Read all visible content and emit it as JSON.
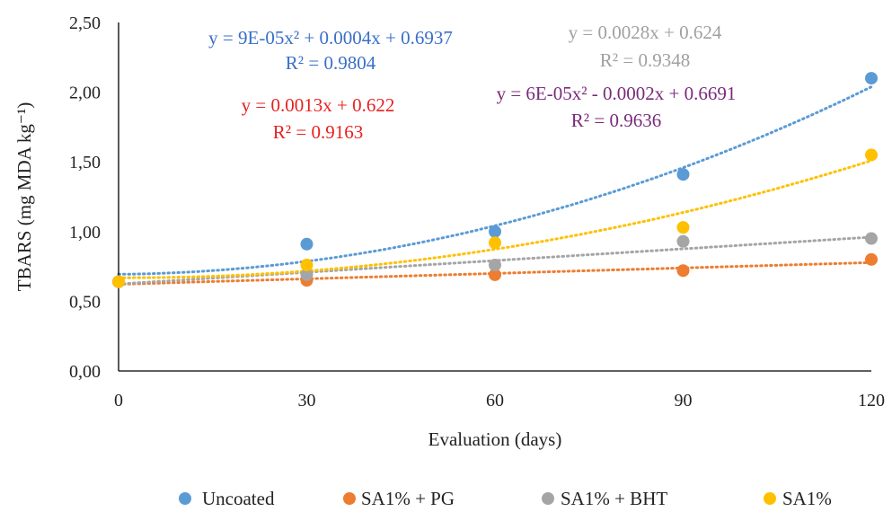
{
  "chart_data": {
    "type": "scatter",
    "title": "",
    "xlabel": "Evaluation (days)",
    "ylabel": "TBARS (mg MDA kg⁻¹)",
    "x": [
      0,
      30,
      60,
      90,
      120
    ],
    "xlim": [
      0,
      120
    ],
    "ylim": [
      0,
      2.5
    ],
    "x_ticks": [
      "0",
      "30",
      "60",
      "90",
      "120"
    ],
    "y_ticks": [
      "0,00",
      "0,50",
      "1,00",
      "1,50",
      "2,00",
      "2,50"
    ],
    "grid": false,
    "legend_position": "bottom",
    "series": [
      {
        "name": "Uncoated",
        "color": "#5b9bd5",
        "values": [
          0.64,
          0.91,
          1.0,
          1.41,
          2.1
        ],
        "trendline": {
          "type": "poly2",
          "coefficients": [
            9e-05,
            0.0004,
            0.6937
          ]
        },
        "equation": "y = 9E-05x² + 0.0004x + 0.6937",
        "r2": "R² = 0.9804"
      },
      {
        "name": "SA1% + PG",
        "color": "#ed7d31",
        "values": [
          0.64,
          0.65,
          0.69,
          0.72,
          0.8
        ],
        "trendline": {
          "type": "linear",
          "coefficients": [
            0.0013,
            0.622
          ]
        },
        "equation": "y = 0.0013x + 0.622",
        "r2": "R² = 0.9163"
      },
      {
        "name": "SA1% + BHT",
        "color": "#a5a5a5",
        "values": [
          0.64,
          0.69,
          0.76,
          0.93,
          0.95
        ],
        "trendline": {
          "type": "linear",
          "coefficients": [
            0.0028,
            0.624
          ]
        },
        "equation": "y = 0.0028x + 0.624",
        "r2": "R² = 0.9348"
      },
      {
        "name": "SA1%",
        "color": "#ffc000",
        "values": [
          0.64,
          0.76,
          0.92,
          1.03,
          1.55
        ],
        "trendline": {
          "type": "poly2",
          "coefficients": [
            6e-05,
            -0.0002,
            0.6691
          ]
        },
        "equation": "y = 6E-05x² - 0.0002x + 0.6691",
        "r2": "R² = 0.9636"
      }
    ],
    "annotation_colors": {
      "Uncoated": "#3a6fc8",
      "SA1% + PG": "#e82020",
      "SA1% + BHT": "#a0a0a0",
      "SA1%": "#7a2a7a"
    }
  }
}
